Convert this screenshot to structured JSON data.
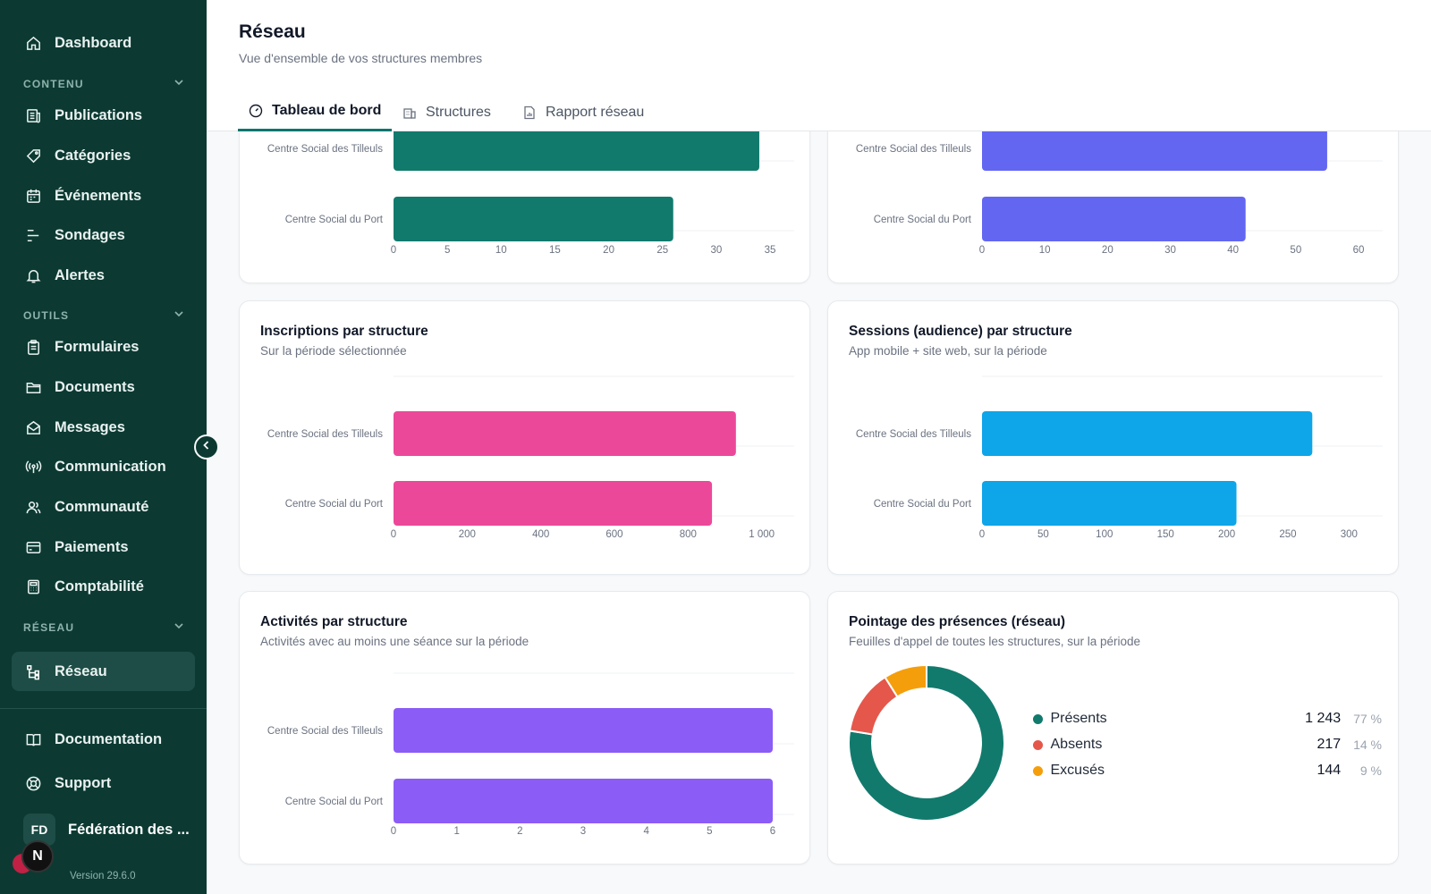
{
  "sidebar": {
    "dashboard": "Dashboard",
    "sections": {
      "contenu": "CONTENU",
      "outils": "OUTILS",
      "reseau": "RÉSEAU"
    },
    "contenu_items": [
      "Publications",
      "Catégories",
      "Événements",
      "Sondages",
      "Alertes"
    ],
    "outils_items": [
      "Formulaires",
      "Documents",
      "Messages",
      "Communication",
      "Communauté",
      "Paiements",
      "Comptabilité"
    ],
    "reseau_item": "Réseau",
    "bottom_items": [
      "Documentation",
      "Support"
    ],
    "org_initials": "FD",
    "org_name": "Fédération des ...",
    "version": "Version 29.6.0",
    "next_badge": "N"
  },
  "header": {
    "title": "Réseau",
    "subtitle": "Vue d'ensemble de vos structures membres",
    "tabs": [
      "Tableau de bord",
      "Structures",
      "Rapport réseau"
    ]
  },
  "colors": {
    "teal": "#117a6d",
    "indigo": "#6366f1",
    "pink": "#ec4899",
    "sky": "#0ea5e9",
    "violet": "#8b5cf6",
    "red": "#e5574b",
    "amber": "#f59e0b"
  },
  "chart_data": [
    {
      "id": "top-left",
      "type": "bar",
      "orientation": "horizontal",
      "categories": [
        "Centre Social des Tilleuls",
        "Centre Social du Port"
      ],
      "values": [
        34,
        26
      ],
      "xlim": [
        0,
        35
      ],
      "ticks": [
        "0",
        "5",
        "10",
        "15",
        "20",
        "25",
        "30",
        "35"
      ],
      "color": "#117a6d"
    },
    {
      "id": "top-right",
      "type": "bar",
      "orientation": "horizontal",
      "categories": [
        "Centre Social des Tilleuls",
        "Centre Social du Port"
      ],
      "values": [
        55,
        42
      ],
      "xlim": [
        0,
        60
      ],
      "ticks": [
        "0",
        "10",
        "20",
        "30",
        "40",
        "50",
        "60"
      ],
      "color": "#6366f1"
    },
    {
      "id": "inscriptions",
      "type": "bar",
      "orientation": "horizontal",
      "title": "Inscriptions par structure",
      "subtitle": "Sur la période sélectionnée",
      "categories": [
        "Centre Social des Tilleuls",
        "Centre Social du Port"
      ],
      "values": [
        930,
        865
      ],
      "xlim": [
        0,
        1030
      ],
      "ticks": [
        "0",
        "200",
        "400",
        "600",
        "800",
        "1 000"
      ],
      "color": "#ec4899"
    },
    {
      "id": "sessions",
      "type": "bar",
      "orientation": "horizontal",
      "title": "Sessions (audience) par structure",
      "subtitle": "App mobile + site web, sur la période",
      "categories": [
        "Centre Social des Tilleuls",
        "Centre Social du Port"
      ],
      "values": [
        270,
        208
      ],
      "xlim": [
        0,
        310
      ],
      "ticks": [
        "0",
        "50",
        "100",
        "150",
        "200",
        "250",
        "300"
      ],
      "color": "#0ea5e9"
    },
    {
      "id": "activites",
      "type": "bar",
      "orientation": "horizontal",
      "title": "Activités par structure",
      "subtitle": "Activités avec au moins une séance sur la période",
      "categories": [
        "Centre Social des Tilleuls",
        "Centre Social du Port"
      ],
      "values": [
        6,
        6
      ],
      "xlim": [
        0,
        6
      ],
      "ticks": [
        "0",
        "1",
        "2",
        "3",
        "4",
        "5",
        "6"
      ],
      "color": "#8b5cf6"
    },
    {
      "id": "presences",
      "type": "pie",
      "title": "Pointage des présences (réseau)",
      "subtitle": "Feuilles d'appel de toutes les structures, sur la période",
      "series": [
        {
          "name": "Présents",
          "value": 1243,
          "display": "1 243",
          "pct": "77 %",
          "color": "#117a6d"
        },
        {
          "name": "Absents",
          "value": 217,
          "display": "217",
          "pct": "14 %",
          "color": "#e5574b"
        },
        {
          "name": "Excusés",
          "value": 144,
          "display": "144",
          "pct": "9 %",
          "color": "#f59e0b"
        }
      ]
    }
  ]
}
